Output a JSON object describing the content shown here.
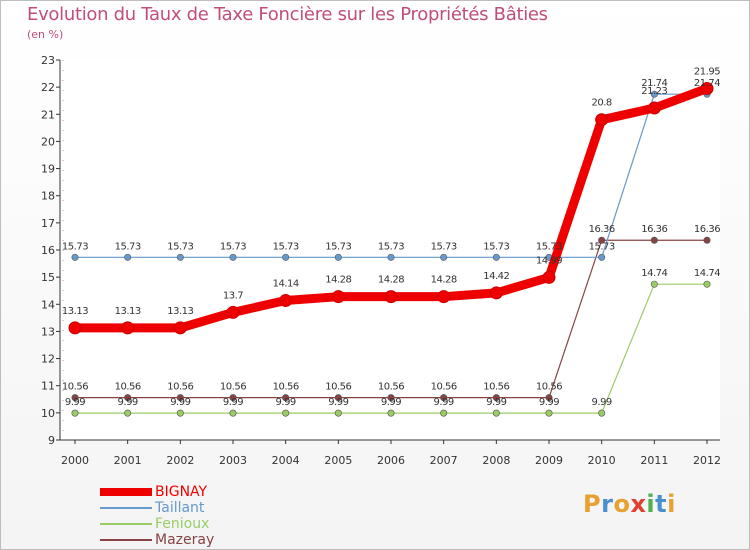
{
  "chart_data": {
    "type": "line",
    "title": "Evolution du Taux de Taxe Foncière sur les Propriétés Bâties",
    "subtitle": "(en %)",
    "xlabel": "",
    "ylabel": "",
    "ylim": [
      9,
      23
    ],
    "yticks": [
      "9",
      "10",
      "11",
      "12",
      "13",
      "14",
      "15",
      "16",
      "17",
      "18",
      "19",
      "20",
      "21",
      "22",
      "23"
    ],
    "categories": [
      "2000",
      "2001",
      "2002",
      "2003",
      "2004",
      "2005",
      "2006",
      "2007",
      "2008",
      "2009",
      "2010",
      "2011",
      "2012"
    ],
    "series": [
      {
        "name": "BIGNAY",
        "color": "#ee0000",
        "values": [
          13.13,
          13.13,
          13.13,
          13.7,
          14.14,
          14.28,
          14.28,
          14.28,
          14.42,
          14.99,
          20.8,
          21.23,
          21.95
        ],
        "labels": [
          "13.13",
          "13.13",
          "13.13",
          "13.7",
          "14.14",
          "14.28",
          "14.28",
          "14.28",
          "14.42",
          "14.99",
          "20.8",
          "21.23",
          "21.95"
        ]
      },
      {
        "name": "Taillant",
        "color": "#6699cc",
        "values": [
          15.73,
          15.73,
          15.73,
          15.73,
          15.73,
          15.73,
          15.73,
          15.73,
          15.73,
          15.73,
          15.73,
          21.74,
          21.74
        ],
        "labels": [
          "15.73",
          "15.73",
          "15.73",
          "15.73",
          "15.73",
          "15.73",
          "15.73",
          "15.73",
          "15.73",
          "15.73",
          "15.73",
          "21.74",
          "21.74"
        ]
      },
      {
        "name": "Fenioux",
        "color": "#99cc66",
        "values": [
          9.99,
          9.99,
          9.99,
          9.99,
          9.99,
          9.99,
          9.99,
          9.99,
          9.99,
          9.99,
          9.99,
          14.74,
          14.74
        ],
        "labels": [
          "9.99",
          "9.99",
          "9.99",
          "9.99",
          "9.99",
          "9.99",
          "9.99",
          "9.99",
          "9.99",
          "9.99",
          "9.99",
          "14.74",
          "14.74"
        ]
      },
      {
        "name": "Mazeray",
        "color": "#884444",
        "values": [
          10.56,
          10.56,
          10.56,
          10.56,
          10.56,
          10.56,
          10.56,
          10.56,
          10.56,
          10.56,
          16.36,
          16.36,
          16.36
        ],
        "labels": [
          "10.56",
          "10.56",
          "10.56",
          "10.56",
          "10.56",
          "10.56",
          "10.56",
          "10.56",
          "10.56",
          "10.56",
          "16.36",
          "16.36",
          "16.36"
        ]
      }
    ],
    "legend": "bottom-left"
  },
  "logo": {
    "text": "Proxiti",
    "colors": [
      "#e8a030",
      "#4a90d0",
      "#e8a030",
      "#e04030",
      "#50b050",
      "#4a90d0",
      "#e8a030"
    ]
  }
}
